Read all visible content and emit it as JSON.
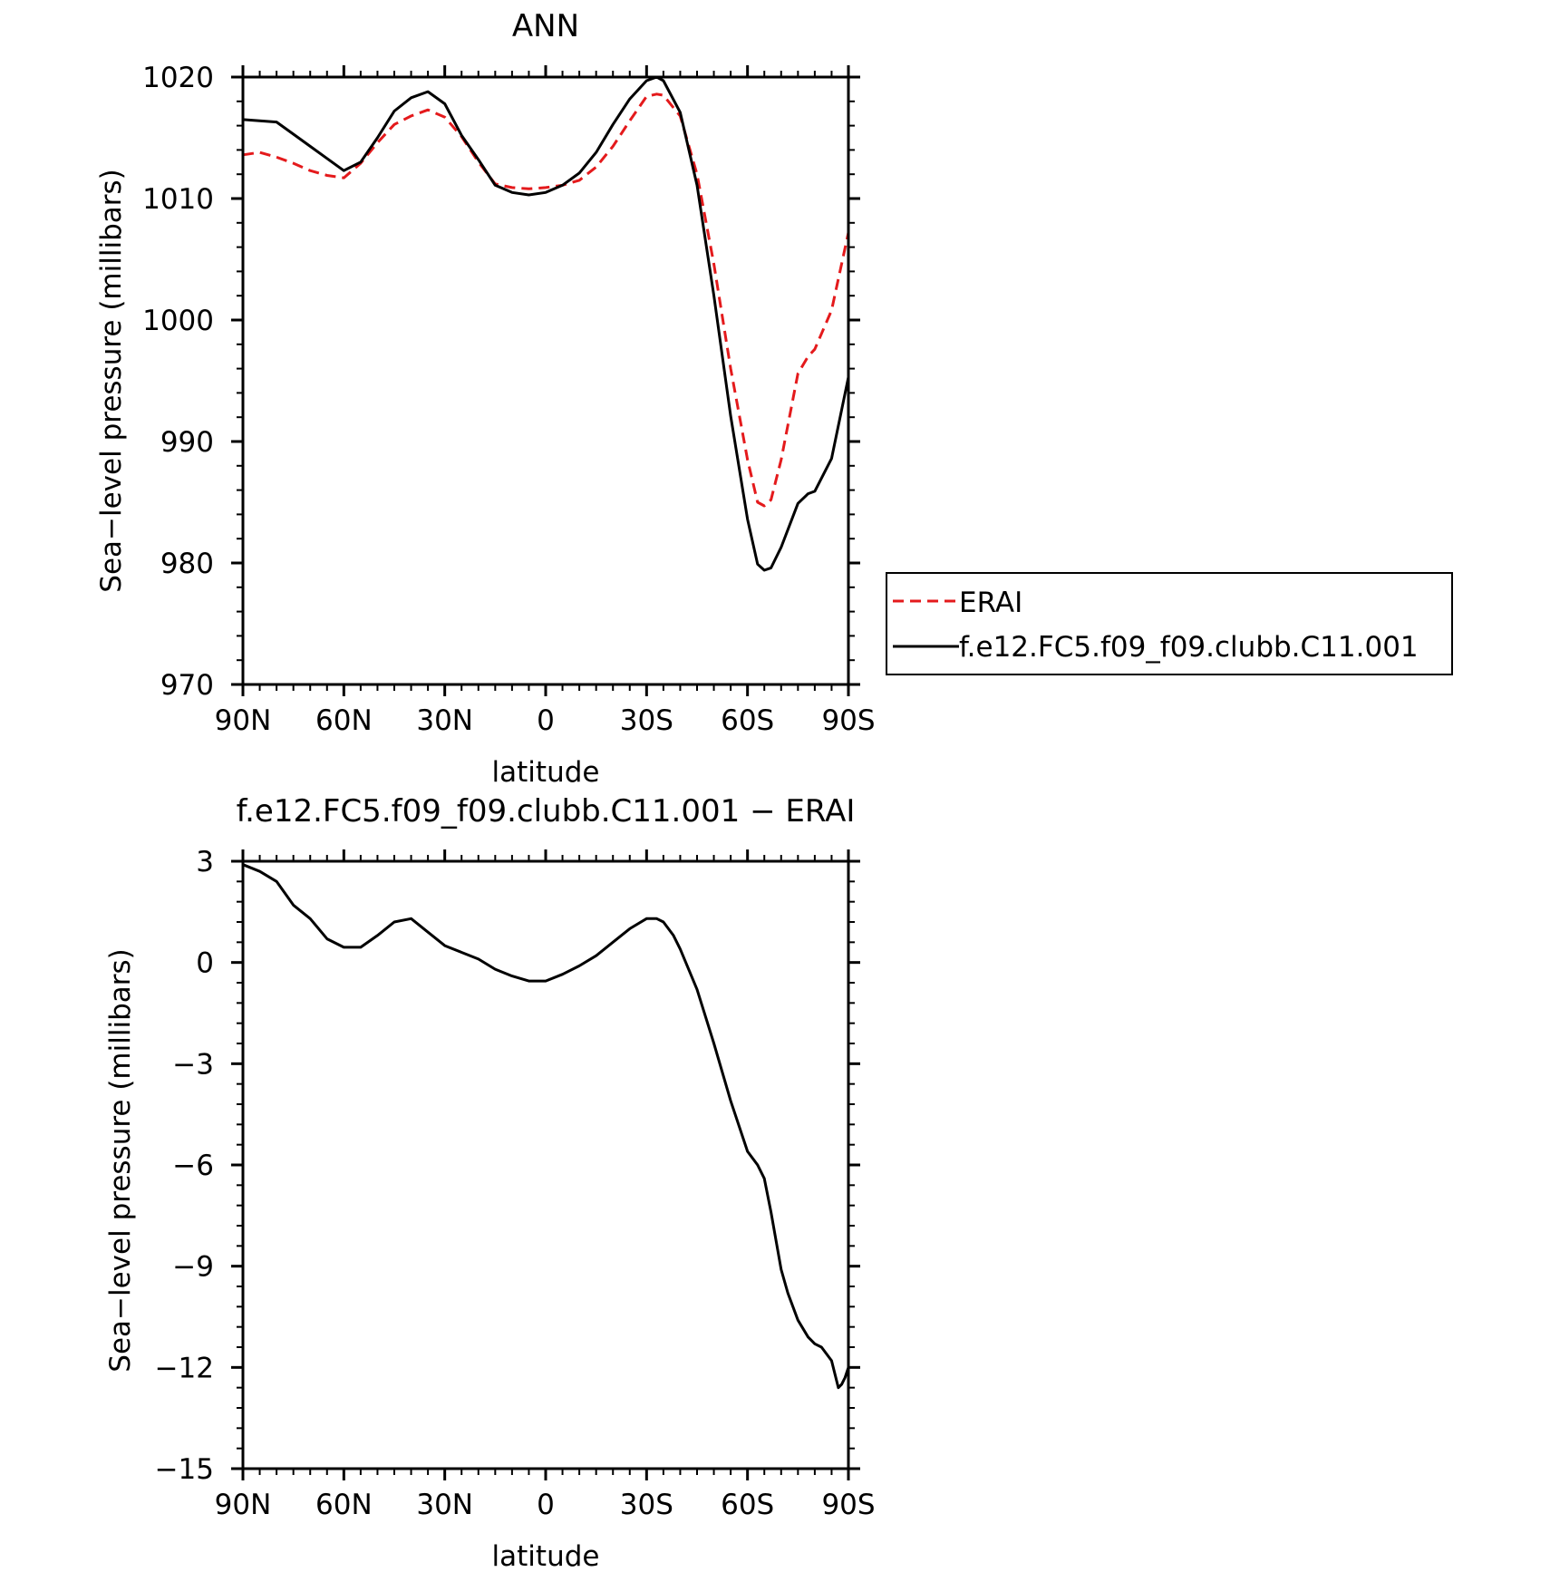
{
  "chart_data": [
    {
      "type": "line",
      "title": "ANN",
      "xlabel": "latitude",
      "ylabel": "Sea−level pressure (millibars)",
      "xlim": [
        90,
        -90
      ],
      "ylim": [
        970,
        1020
      ],
      "x_ticks": [
        90,
        60,
        30,
        0,
        -30,
        -60,
        -90
      ],
      "x_tick_labels": [
        "90N",
        "60N",
        "30N",
        "0",
        "30S",
        "60S",
        "90S"
      ],
      "y_ticks": [
        970,
        980,
        990,
        1000,
        1010,
        1020
      ],
      "y_tick_labels": [
        "970",
        "980",
        "990",
        "1000",
        "1010",
        "1020"
      ],
      "grid": false,
      "legend_position": "right",
      "colors": {
        "ERAI": "#e41a1c",
        "model": "#000000"
      },
      "series": [
        {
          "name": "ERAI",
          "style": "dashed",
          "color": "#e41a1c",
          "x": [
            90,
            85,
            80,
            75,
            70,
            65,
            60,
            55,
            50,
            45,
            40,
            35,
            30,
            25,
            20,
            15,
            10,
            5,
            0,
            -5,
            -10,
            -15,
            -20,
            -25,
            -30,
            -33,
            -35,
            -40,
            -45,
            -50,
            -55,
            -60,
            -63,
            -65,
            -67,
            -70,
            -75,
            -78,
            -80,
            -85,
            -90
          ],
          "y": [
            1013.6,
            1013.8,
            1013.4,
            1012.9,
            1012.3,
            1011.9,
            1011.7,
            1012.9,
            1014.6,
            1016.1,
            1016.8,
            1017.3,
            1016.7,
            1015.1,
            1013.0,
            1011.2,
            1010.9,
            1010.8,
            1010.9,
            1011.1,
            1011.5,
            1012.6,
            1014.3,
            1016.4,
            1018.4,
            1018.6,
            1018.5,
            1016.8,
            1012.0,
            1004.6,
            996.0,
            988.5,
            985.0,
            984.7,
            985.2,
            988.5,
            995.6,
            997.0,
            997.6,
            1000.8,
            1007.2
          ]
        },
        {
          "name": "f.e12.FC5.f09_f09.clubb.C11.001",
          "style": "solid",
          "color": "#000000",
          "x": [
            90,
            85,
            80,
            75,
            70,
            65,
            60,
            55,
            50,
            45,
            40,
            35,
            30,
            25,
            20,
            15,
            10,
            5,
            0,
            -5,
            -10,
            -15,
            -20,
            -25,
            -30,
            -33,
            -35,
            -40,
            -45,
            -50,
            -55,
            -60,
            -63,
            -65,
            -67,
            -70,
            -75,
            -78,
            -80,
            -85,
            -90
          ],
          "y": [
            1016.5,
            1016.4,
            1016.3,
            1015.3,
            1014.3,
            1013.3,
            1012.3,
            1013.0,
            1015.0,
            1017.2,
            1018.3,
            1018.8,
            1017.8,
            1015.2,
            1013.2,
            1011.1,
            1010.5,
            1010.3,
            1010.5,
            1011.1,
            1012.1,
            1013.8,
            1016.1,
            1018.2,
            1019.7,
            1020.0,
            1019.7,
            1017.1,
            1011.1,
            1002.0,
            992.1,
            983.6,
            979.9,
            979.4,
            979.6,
            981.3,
            984.9,
            985.7,
            985.9,
            988.6,
            995.3
          ]
        }
      ]
    },
    {
      "type": "line",
      "title": "f.e12.FC5.f09_f09.clubb.C11.001 − ERAI",
      "xlabel": "latitude",
      "ylabel": "Sea−level pressure (millibars)",
      "xlim": [
        90,
        -90
      ],
      "ylim": [
        -15,
        3
      ],
      "x_ticks": [
        90,
        60,
        30,
        0,
        -30,
        -60,
        -90
      ],
      "x_tick_labels": [
        "90N",
        "60N",
        "30N",
        "0",
        "30S",
        "60S",
        "90S"
      ],
      "y_ticks": [
        -15,
        -12,
        -9,
        -6,
        -3,
        0,
        3
      ],
      "y_tick_labels": [
        "−15",
        "−12",
        "−9",
        "−6",
        "−3",
        "0",
        "3"
      ],
      "grid": false,
      "series": [
        {
          "style": "solid",
          "color": "#000000",
          "x": [
            90,
            85,
            80,
            75,
            70,
            65,
            60,
            55,
            50,
            45,
            40,
            35,
            30,
            25,
            20,
            15,
            10,
            5,
            0,
            -5,
            -10,
            -15,
            -20,
            -25,
            -30,
            -33,
            -35,
            -38,
            -40,
            -45,
            -50,
            -55,
            -60,
            -63,
            -65,
            -67,
            -70,
            -72,
            -75,
            -78,
            -80,
            -82,
            -85,
            -87,
            -88,
            -89,
            -90
          ],
          "y": [
            2.9,
            2.7,
            2.4,
            1.7,
            1.3,
            0.7,
            0.45,
            0.45,
            0.8,
            1.2,
            1.3,
            0.9,
            0.5,
            0.3,
            0.1,
            -0.2,
            -0.4,
            -0.55,
            -0.55,
            -0.35,
            -0.1,
            0.2,
            0.6,
            1.0,
            1.3,
            1.3,
            1.2,
            0.8,
            0.4,
            -0.8,
            -2.4,
            -4.1,
            -5.6,
            -6.0,
            -6.4,
            -7.4,
            -9.1,
            -9.8,
            -10.6,
            -11.1,
            -11.3,
            -11.4,
            -11.8,
            -12.6,
            -12.5,
            -12.3,
            -12.0
          ]
        }
      ]
    }
  ]
}
